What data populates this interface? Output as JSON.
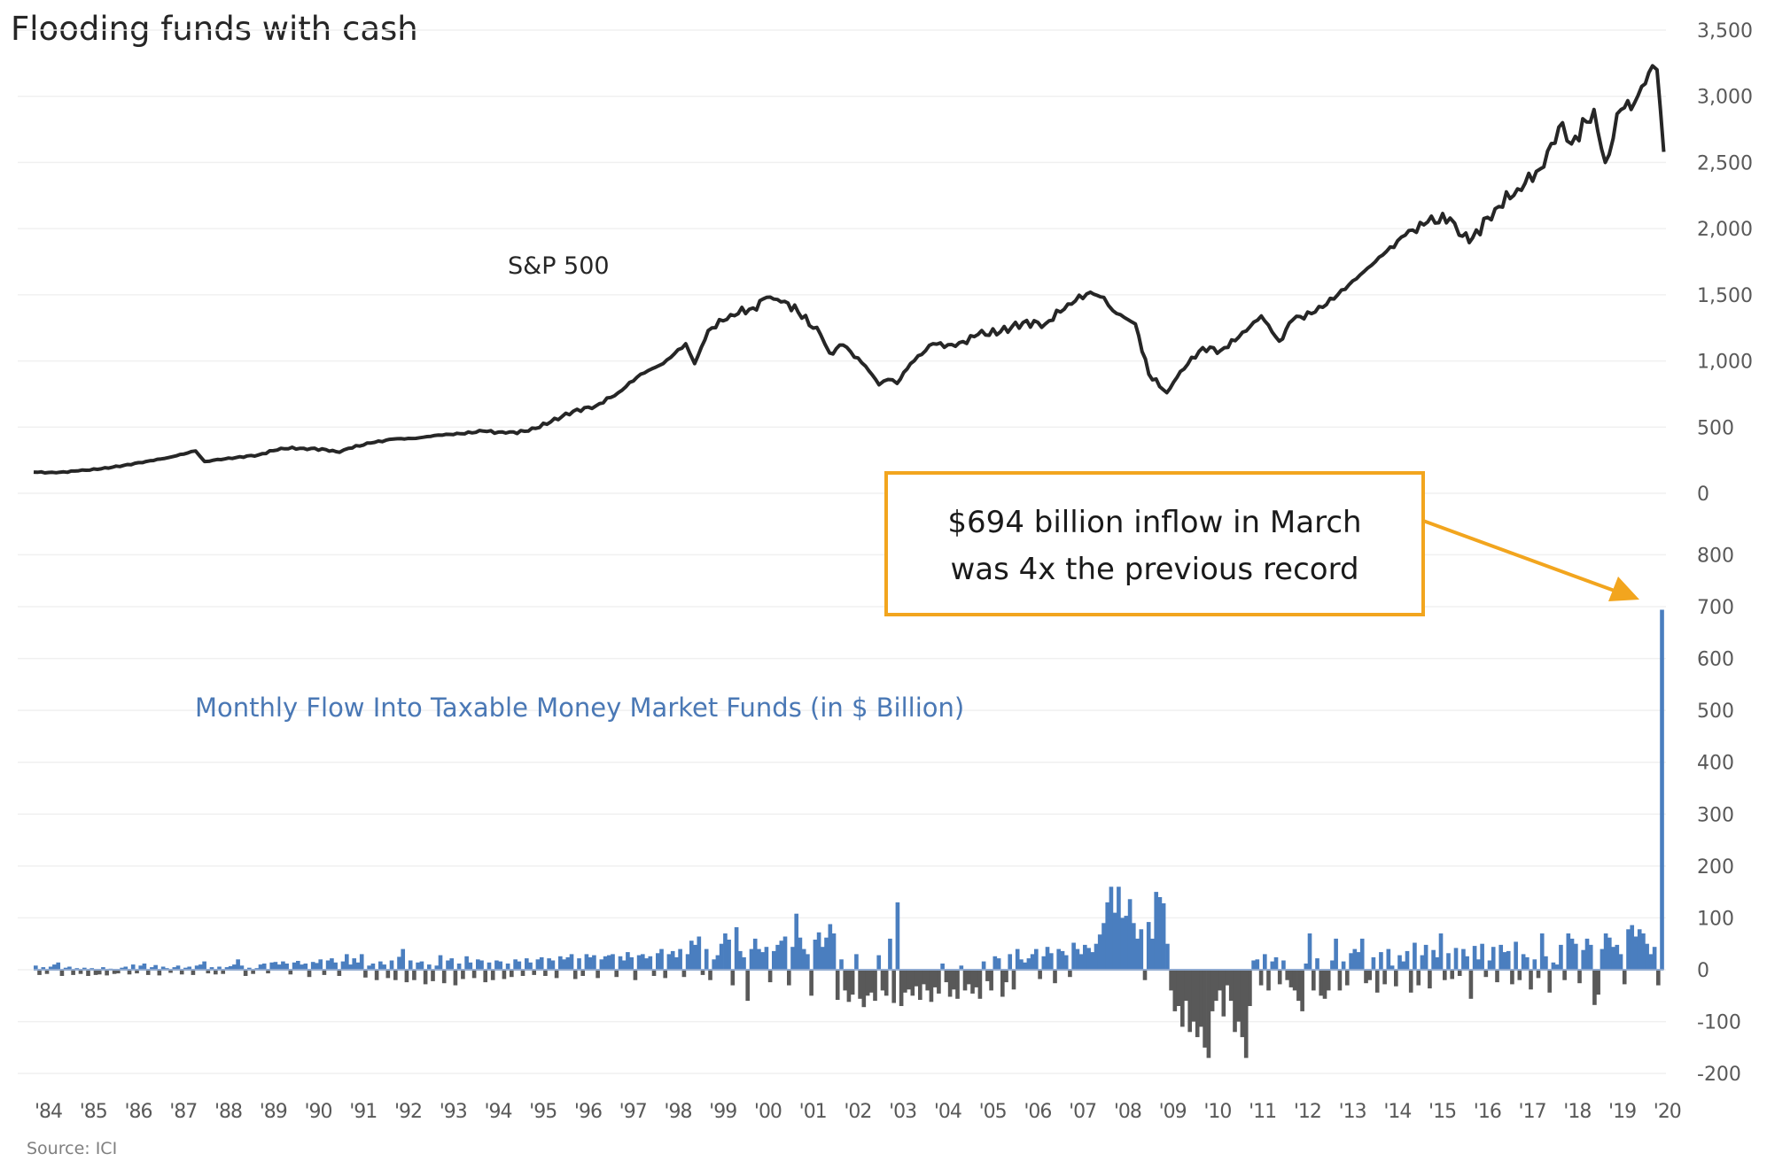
{
  "colors": {
    "sp_line": "#262626",
    "bar_positive": "#4a7ebf",
    "bar_negative": "#595959",
    "annotation": "#f2a51e",
    "flow_label": "#4a78b5"
  },
  "chart_data": [
    {
      "type": "line",
      "title": "Flooding funds with cash",
      "series_label": "S&P 500",
      "x_start": 1984,
      "x_end": 2020.25,
      "ylim": [
        0,
        3500
      ],
      "yticks": [
        0,
        500,
        1000,
        1500,
        2000,
        2500,
        3000,
        3500
      ],
      "ytick_labels": [
        "0",
        "500",
        "1,000",
        "1,500",
        "2,000",
        "2,500",
        "3,000",
        "3,500"
      ],
      "grid": true,
      "points": [
        [
          1984.0,
          160
        ],
        [
          1984.5,
          155
        ],
        [
          1985.0,
          170
        ],
        [
          1985.5,
          185
        ],
        [
          1986.0,
          210
        ],
        [
          1986.5,
          240
        ],
        [
          1987.0,
          270
        ],
        [
          1987.6,
          320
        ],
        [
          1987.8,
          240
        ],
        [
          1988.0,
          250
        ],
        [
          1988.5,
          270
        ],
        [
          1989.0,
          290
        ],
        [
          1989.5,
          340
        ],
        [
          1990.0,
          340
        ],
        [
          1990.5,
          330
        ],
        [
          1990.8,
          310
        ],
        [
          1991.0,
          340
        ],
        [
          1991.5,
          380
        ],
        [
          1992.0,
          410
        ],
        [
          1992.5,
          415
        ],
        [
          1993.0,
          440
        ],
        [
          1993.5,
          450
        ],
        [
          1994.0,
          470
        ],
        [
          1994.5,
          455
        ],
        [
          1995.0,
          470
        ],
        [
          1995.5,
          540
        ],
        [
          1996.0,
          620
        ],
        [
          1996.5,
          660
        ],
        [
          1997.0,
          760
        ],
        [
          1997.5,
          900
        ],
        [
          1998.0,
          980
        ],
        [
          1998.5,
          1130
        ],
        [
          1998.7,
          980
        ],
        [
          1999.0,
          1230
        ],
        [
          1999.5,
          1350
        ],
        [
          2000.0,
          1400
        ],
        [
          2000.3,
          1480
        ],
        [
          2000.7,
          1450
        ],
        [
          2001.0,
          1370
        ],
        [
          2001.5,
          1200
        ],
        [
          2001.7,
          1060
        ],
        [
          2002.0,
          1120
        ],
        [
          2002.5,
          960
        ],
        [
          2002.8,
          820
        ],
        [
          2003.0,
          860
        ],
        [
          2003.2,
          830
        ],
        [
          2003.5,
          980
        ],
        [
          2004.0,
          1130
        ],
        [
          2004.5,
          1110
        ],
        [
          2005.0,
          1200
        ],
        [
          2005.5,
          1220
        ],
        [
          2006.0,
          1290
        ],
        [
          2006.5,
          1280
        ],
        [
          2007.0,
          1430
        ],
        [
          2007.5,
          1520
        ],
        [
          2007.8,
          1480
        ],
        [
          2008.0,
          1380
        ],
        [
          2008.5,
          1280
        ],
        [
          2008.8,
          900
        ],
        [
          2009.2,
          760
        ],
        [
          2009.5,
          920
        ],
        [
          2010.0,
          1100
        ],
        [
          2010.4,
          1080
        ],
        [
          2010.8,
          1180
        ],
        [
          2011.3,
          1340
        ],
        [
          2011.7,
          1150
        ],
        [
          2012.0,
          1310
        ],
        [
          2012.5,
          1370
        ],
        [
          2013.0,
          1500
        ],
        [
          2013.5,
          1650
        ],
        [
          2014.0,
          1800
        ],
        [
          2014.5,
          1950
        ],
        [
          2015.0,
          2050
        ],
        [
          2015.5,
          2080
        ],
        [
          2015.7,
          1950
        ],
        [
          2016.0,
          1930
        ],
        [
          2016.5,
          2150
        ],
        [
          2017.0,
          2300
        ],
        [
          2017.5,
          2450
        ],
        [
          2018.0,
          2800
        ],
        [
          2018.2,
          2640
        ],
        [
          2018.7,
          2900
        ],
        [
          2018.95,
          2500
        ],
        [
          2019.3,
          2900
        ],
        [
          2019.6,
          2950
        ],
        [
          2020.0,
          3230
        ],
        [
          2020.1,
          3200
        ],
        [
          2020.25,
          2580
        ]
      ]
    },
    {
      "type": "bar",
      "title": "Monthly Flow Into Taxable Money Market Funds (in $ Billion)",
      "ylim": [
        -200,
        800
      ],
      "yticks": [
        -200,
        -100,
        0,
        100,
        200,
        300,
        400,
        500,
        600,
        700,
        800
      ],
      "ytick_labels": [
        "-200",
        "-100",
        "0",
        "100",
        "200",
        "300",
        "400",
        "500",
        "600",
        "700",
        "800"
      ],
      "grid": true,
      "frequency": "monthly",
      "start": "1984-01",
      "note": "monthly flows sampled from chart; approx values",
      "yearly_profiles": [
        {
          "year": 1984,
          "values": [
            8,
            -10,
            5,
            -8,
            6,
            10,
            14,
            -12,
            4,
            6,
            -10,
            3
          ]
        },
        {
          "year": 1985,
          "values": [
            -8,
            4,
            -12,
            3,
            -10,
            -9,
            5,
            -11,
            2,
            -8,
            -7,
            4
          ]
        },
        {
          "year": 1986,
          "values": [
            6,
            -9,
            10,
            -7,
            8,
            12,
            -10,
            5,
            9,
            -11,
            6,
            3
          ]
        },
        {
          "year": 1987,
          "values": [
            -6,
            5,
            8,
            -9,
            4,
            6,
            -10,
            8,
            10,
            16,
            -7,
            5
          ]
        },
        {
          "year": 1988,
          "values": [
            -9,
            6,
            -8,
            5,
            7,
            10,
            20,
            8,
            -12,
            4,
            -8,
            3
          ]
        },
        {
          "year": 1989,
          "values": [
            10,
            12,
            -7,
            14,
            15,
            10,
            16,
            12,
            -9,
            14,
            17,
            10
          ]
        },
        {
          "year": 1990,
          "values": [
            12,
            -14,
            15,
            13,
            20,
            -10,
            18,
            22,
            14,
            -12,
            16,
            30
          ]
        },
        {
          "year": 1991,
          "values": [
            10,
            22,
            14,
            30,
            -15,
            8,
            12,
            -20,
            16,
            10,
            -16,
            18
          ]
        },
        {
          "year": 1992,
          "values": [
            -20,
            25,
            40,
            -24,
            18,
            -20,
            14,
            16,
            -28,
            10,
            -22,
            8
          ]
        },
        {
          "year": 1993,
          "values": [
            28,
            -26,
            18,
            22,
            -30,
            12,
            -18,
            26,
            14,
            -16,
            20,
            18
          ]
        },
        {
          "year": 1994,
          "values": [
            -24,
            14,
            -20,
            18,
            16,
            -18,
            12,
            -14,
            20,
            16,
            -12,
            22
          ]
        },
        {
          "year": 1995,
          "values": [
            14,
            -10,
            20,
            24,
            -12,
            22,
            18,
            -16,
            26,
            20,
            24,
            30
          ]
        },
        {
          "year": 1996,
          "values": [
            -18,
            22,
            -12,
            30,
            24,
            28,
            -16,
            20,
            26,
            28,
            30,
            -14
          ]
        },
        {
          "year": 1997,
          "values": [
            26,
            18,
            34,
            24,
            -20,
            28,
            30,
            22,
            26,
            -12,
            32,
            40
          ]
        },
        {
          "year": 1998,
          "values": [
            -16,
            30,
            36,
            24,
            40,
            -14,
            30,
            56,
            48,
            64,
            -10,
            40
          ]
        },
        {
          "year": 1999,
          "values": [
            -20,
            20,
            28,
            50,
            70,
            58,
            -30,
            82,
            36,
            24,
            -60,
            40
          ]
        },
        {
          "year": 2000,
          "values": [
            60,
            40,
            34,
            44,
            -24,
            36,
            48,
            56,
            64,
            -30,
            44,
            108
          ]
        },
        {
          "year": 2001,
          "values": [
            62,
            40,
            30,
            -50,
            58,
            72,
            44,
            62,
            88,
            70,
            -58,
            20
          ]
        },
        {
          "year": 2002,
          "values": [
            -40,
            -62,
            -48,
            30,
            -56,
            -72,
            -50,
            -44,
            -60,
            28,
            -40,
            -50
          ]
        },
        {
          "year": 2003,
          "values": [
            60,
            -64,
            130,
            -70,
            -44,
            -38,
            -50,
            -32,
            -58,
            -28,
            -40,
            -62
          ]
        },
        {
          "year": 2004,
          "values": [
            -34,
            -46,
            12,
            -24,
            -52,
            -38,
            -56,
            8,
            -40,
            -28,
            -46,
            -34
          ]
        },
        {
          "year": 2005,
          "values": [
            -56,
            16,
            -22,
            -40,
            26,
            22,
            -52,
            -24,
            30,
            -38,
            40,
            20
          ]
        },
        {
          "year": 2006,
          "values": [
            14,
            22,
            30,
            40,
            -18,
            26,
            44,
            32,
            -26,
            40,
            36,
            28
          ]
        },
        {
          "year": 2007,
          "values": [
            -14,
            52,
            40,
            30,
            48,
            42,
            34,
            50,
            68,
            90,
            130,
            160
          ]
        },
        {
          "year": 2008,
          "values": [
            110,
            160,
            100,
            104,
            136,
            90,
            60,
            78,
            -20,
            92,
            60,
            150
          ]
        },
        {
          "year": 2009,
          "values": [
            140,
            128,
            50,
            -40,
            -80,
            -70,
            -110,
            -60,
            -120,
            -100,
            -130,
            -110
          ]
        },
        {
          "year": 2010,
          "values": [
            -150,
            -170,
            -80,
            -60,
            -40,
            -90,
            -30,
            -60,
            -120,
            -100,
            -130,
            -170
          ]
        },
        {
          "year": 2011,
          "values": [
            -70,
            18,
            20,
            -30,
            30,
            -40,
            16,
            24,
            -28,
            18,
            -20,
            -34
          ]
        },
        {
          "year": 2012,
          "values": [
            -40,
            -60,
            -80,
            12,
            70,
            -40,
            22,
            -50,
            -56,
            -40,
            18,
            60
          ]
        },
        {
          "year": 2013,
          "values": [
            -40,
            16,
            -30,
            32,
            40,
            34,
            60,
            -26,
            -20,
            24,
            -44,
            34
          ]
        },
        {
          "year": 2014,
          "values": [
            -28,
            40,
            8,
            -32,
            28,
            16,
            36,
            -44,
            52,
            -30,
            28,
            48
          ]
        },
        {
          "year": 2015,
          "values": [
            -36,
            38,
            24,
            70,
            -20,
            32,
            -18,
            42,
            -12,
            40,
            26,
            -56
          ]
        },
        {
          "year": 2016,
          "values": [
            46,
            20,
            50,
            -14,
            18,
            44,
            -24,
            48,
            34,
            36,
            -28,
            54
          ]
        },
        {
          "year": 2017,
          "values": [
            -20,
            30,
            24,
            -38,
            20,
            -16,
            70,
            26,
            -44,
            14,
            10,
            48
          ]
        },
        {
          "year": 2018,
          "values": [
            -20,
            70,
            60,
            50,
            -26,
            38,
            60,
            48,
            -68,
            -48,
            40,
            70
          ]
        },
        {
          "year": 2019,
          "values": [
            62,
            44,
            48,
            30,
            -28,
            78,
            86,
            64,
            78,
            70,
            50,
            30
          ]
        },
        {
          "year": 2020,
          "values": [
            44,
            -30,
            694
          ]
        }
      ],
      "highlight": {
        "label": "March 2020",
        "value": 694
      }
    }
  ],
  "title": "Flooding funds with cash",
  "labels": {
    "sp500": "S&P 500",
    "flows": "Monthly Flow Into Taxable Money Market Funds (in $ Billion)",
    "annotation_line1": "$694 billion inflow in March",
    "annotation_line2": "was 4x the previous record",
    "source": "Source: ICI"
  },
  "x_ticks": [
    "'84",
    "'85",
    "'86",
    "'87",
    "'88",
    "'89",
    "'90",
    "'91",
    "'92",
    "'93",
    "'94",
    "'95",
    "'96",
    "'97",
    "'98",
    "'99",
    "'00",
    "'01",
    "'02",
    "'03",
    "'04",
    "'05",
    "'06",
    "'07",
    "'08",
    "'09",
    "'10",
    "'11",
    "'12",
    "'13",
    "'14",
    "'15",
    "'16",
    "'17",
    "'18",
    "'19",
    "'20"
  ]
}
